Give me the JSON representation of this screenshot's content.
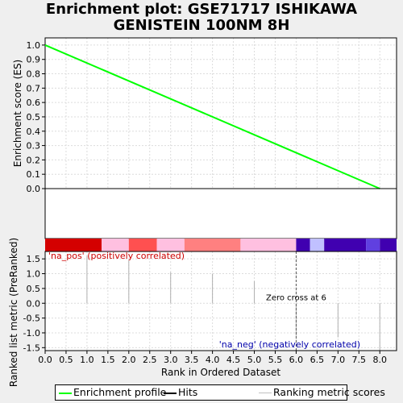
{
  "title_line1": "Enrichment plot: GSE71717 ISHIKAWA",
  "title_line2": "GENISTEIN 100NM 8H",
  "legend": {
    "items": [
      {
        "label": "Enrichment profile",
        "color": "#00ff00"
      },
      {
        "label": "Hits",
        "color": "#000000"
      },
      {
        "label": "Ranking metric scores",
        "color": "#c0c0c0"
      }
    ]
  },
  "chart_data": [
    {
      "type": "line",
      "panel": "enrichment",
      "ylabel": "Enrichment score (ES)",
      "xlim": [
        0,
        8.4
      ],
      "ylim": [
        0,
        1.05
      ],
      "yticks": [
        "0.0",
        "0.1",
        "0.2",
        "0.3",
        "0.4",
        "0.5",
        "0.6",
        "0.7",
        "0.8",
        "0.9",
        "1.0"
      ],
      "series": [
        {
          "color": "#00ff00",
          "x": [
            0,
            8.0
          ],
          "y": [
            1.0,
            0.0
          ]
        }
      ]
    },
    {
      "type": "heatmap",
      "panel": "rank-colorbar",
      "segments": [
        {
          "from": 0.0,
          "to": 1.35,
          "color": "#d40000"
        },
        {
          "from": 1.35,
          "to": 2.0,
          "color": "#ffc0e0"
        },
        {
          "from": 2.0,
          "to": 2.67,
          "color": "#ff5050"
        },
        {
          "from": 2.67,
          "to": 3.33,
          "color": "#ffc0e0"
        },
        {
          "from": 3.33,
          "to": 4.67,
          "color": "#ff8080"
        },
        {
          "from": 4.67,
          "to": 6.0,
          "color": "#ffc0e0"
        },
        {
          "from": 6.0,
          "to": 6.33,
          "color": "#4000b0"
        },
        {
          "from": 6.33,
          "to": 6.67,
          "color": "#c0c0ff"
        },
        {
          "from": 6.67,
          "to": 7.67,
          "color": "#4000b0"
        },
        {
          "from": 7.67,
          "to": 8.0,
          "color": "#6040e0"
        },
        {
          "from": 8.0,
          "to": 8.4,
          "color": "#4000b0"
        }
      ]
    },
    {
      "type": "bar",
      "panel": "ranked-metric",
      "xlabel": "Rank in Ordered Dataset",
      "ylabel": "Ranked list metric (PreRanked)",
      "xlim": [
        0,
        8.4
      ],
      "ylim": [
        -1.6,
        1.75
      ],
      "xticks": [
        "0.0",
        "0.5",
        "1.0",
        "1.5",
        "2.0",
        "2.5",
        "3.0",
        "3.5",
        "4.0",
        "4.5",
        "5.0",
        "5.5",
        "6.0",
        "6.5",
        "7.0",
        "7.5",
        "8.0"
      ],
      "yticks": [
        "-1.5",
        "-1.0",
        "-0.5",
        "0.0",
        "0.5",
        "1.0",
        "1.5"
      ],
      "x": [
        0,
        1,
        2,
        3,
        4,
        5,
        6,
        7,
        8
      ],
      "values": [
        1.75,
        1.6,
        1.45,
        1.05,
        1.0,
        0.75,
        -1.1,
        -1.15,
        -1.6
      ],
      "pos_label": "'na_pos' (positively correlated)",
      "neg_label": "'na_neg' (negatively correlated)",
      "zero_cross_label": "Zero cross at 6",
      "zero_cross_x": 6
    }
  ]
}
